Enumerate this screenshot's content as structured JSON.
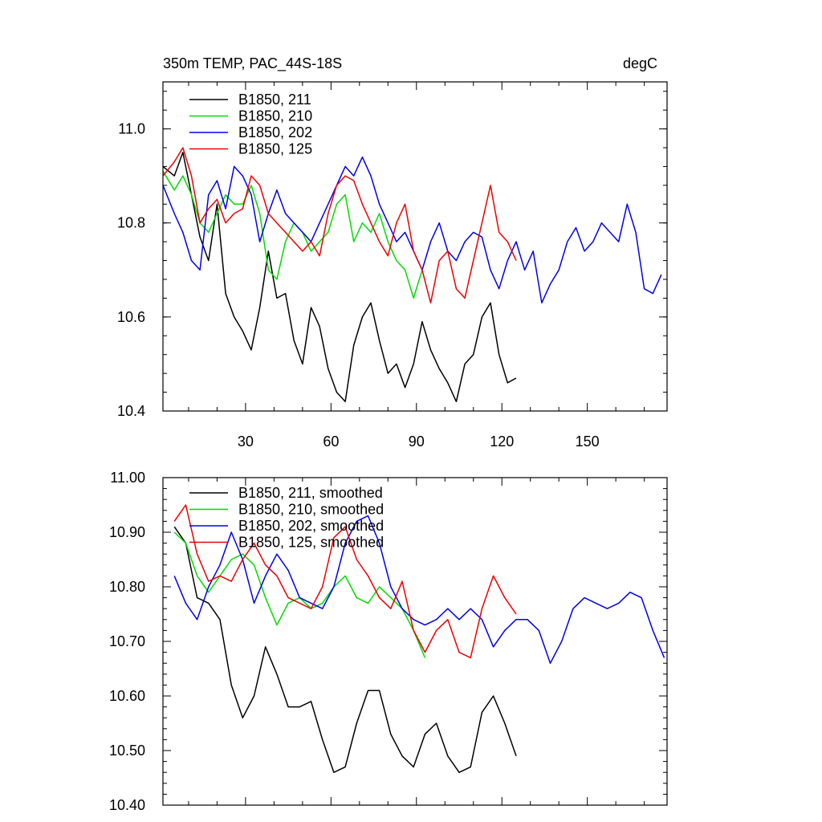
{
  "chart_data": [
    {
      "type": "line",
      "title": "350m TEMP, PAC_44S-18S",
      "units": "degC",
      "xlim": [
        1,
        178
      ],
      "ylim": [
        10.4,
        11.1
      ],
      "x_ticks": [
        30,
        60,
        90,
        120,
        150
      ],
      "y_ticks": [
        10.4,
        10.6,
        10.8,
        11.0
      ],
      "y_tick_labels": [
        "10.4",
        "10.6",
        "10.8",
        "11.0"
      ],
      "legend_position": "top-left",
      "series": [
        {
          "name": "B1850, 211",
          "color": "#000000",
          "x": [
            1,
            5,
            8,
            11,
            14,
            17,
            20,
            23,
            26,
            29,
            32,
            35,
            38,
            41,
            44,
            47,
            50,
            53,
            56,
            59,
            62,
            65,
            68,
            71,
            74,
            77,
            80,
            83,
            86,
            89,
            92,
            95,
            98,
            101,
            104,
            107,
            110,
            113,
            116,
            119,
            122,
            125
          ],
          "y": [
            10.92,
            10.9,
            10.95,
            10.86,
            10.77,
            10.72,
            10.84,
            10.65,
            10.6,
            10.57,
            10.53,
            10.62,
            10.74,
            10.64,
            10.65,
            10.55,
            10.5,
            10.62,
            10.58,
            10.49,
            10.44,
            10.42,
            10.54,
            10.6,
            10.63,
            10.55,
            10.48,
            10.5,
            10.45,
            10.5,
            10.59,
            10.53,
            10.49,
            10.46,
            10.42,
            10.5,
            10.52,
            10.6,
            10.63,
            10.52,
            10.46,
            10.47
          ]
        },
        {
          "name": "B1850, 210",
          "color": "#00dd00",
          "x": [
            1,
            5,
            8,
            11,
            14,
            17,
            20,
            23,
            26,
            29,
            32,
            35,
            38,
            41,
            44,
            47,
            50,
            53,
            56,
            59,
            62,
            65,
            68,
            71,
            74,
            77,
            80,
            83,
            86,
            89,
            92
          ],
          "y": [
            10.91,
            10.87,
            10.9,
            10.86,
            10.8,
            10.78,
            10.82,
            10.86,
            10.84,
            10.84,
            10.88,
            10.82,
            10.7,
            10.68,
            10.76,
            10.8,
            10.78,
            10.74,
            10.76,
            10.78,
            10.84,
            10.86,
            10.76,
            10.8,
            10.78,
            10.82,
            10.76,
            10.72,
            10.7,
            10.64,
            10.7
          ]
        },
        {
          "name": "B1850, 202",
          "color": "#0000ee",
          "x": [
            1,
            5,
            8,
            11,
            14,
            17,
            20,
            23,
            26,
            29,
            32,
            35,
            38,
            41,
            44,
            47,
            50,
            53,
            56,
            59,
            62,
            65,
            68,
            71,
            74,
            77,
            80,
            83,
            86,
            89,
            92,
            95,
            98,
            101,
            104,
            107,
            110,
            113,
            116,
            119,
            122,
            125,
            128,
            131,
            134,
            137,
            140,
            143,
            146,
            149,
            152,
            155,
            158,
            161,
            164,
            167,
            170,
            173,
            176
          ],
          "y": [
            10.88,
            10.82,
            10.78,
            10.72,
            10.7,
            10.86,
            10.89,
            10.83,
            10.92,
            10.9,
            10.86,
            10.76,
            10.82,
            10.87,
            10.82,
            10.8,
            10.78,
            10.76,
            10.8,
            10.84,
            10.88,
            10.92,
            10.9,
            10.94,
            10.9,
            10.84,
            10.8,
            10.76,
            10.78,
            10.74,
            10.7,
            10.76,
            10.8,
            10.74,
            10.72,
            10.76,
            10.78,
            10.77,
            10.7,
            10.66,
            10.72,
            10.76,
            10.7,
            10.74,
            10.63,
            10.67,
            10.7,
            10.76,
            10.79,
            10.74,
            10.76,
            10.8,
            10.78,
            10.76,
            10.84,
            10.78,
            10.66,
            10.65,
            10.69
          ]
        },
        {
          "name": "B1850, 125",
          "color": "#ee0000",
          "x": [
            1,
            5,
            8,
            11,
            14,
            17,
            20,
            23,
            26,
            29,
            32,
            35,
            38,
            41,
            44,
            47,
            50,
            53,
            56,
            59,
            62,
            65,
            68,
            71,
            74,
            77,
            80,
            83,
            86,
            89,
            92,
            95,
            98,
            101,
            104,
            107,
            110,
            113,
            116,
            119,
            122,
            125
          ],
          "y": [
            10.9,
            10.93,
            10.96,
            10.9,
            10.8,
            10.83,
            10.85,
            10.8,
            10.82,
            10.83,
            10.9,
            10.88,
            10.82,
            10.8,
            10.78,
            10.76,
            10.74,
            10.76,
            10.73,
            10.82,
            10.88,
            10.9,
            10.89,
            10.84,
            10.8,
            10.76,
            10.73,
            10.8,
            10.84,
            10.74,
            10.7,
            10.63,
            10.72,
            10.74,
            10.66,
            10.64,
            10.72,
            10.8,
            10.88,
            10.78,
            10.76,
            10.72
          ]
        }
      ]
    },
    {
      "type": "line",
      "xlim": [
        1,
        178
      ],
      "ylim": [
        10.4,
        11.0
      ],
      "x_ticks": [
        30,
        60,
        90,
        120,
        150
      ],
      "y_ticks": [
        10.4,
        10.5,
        10.6,
        10.7,
        10.8,
        10.9,
        11.0
      ],
      "y_tick_labels": [
        "10.40",
        "10.50",
        "10.60",
        "10.70",
        "10.80",
        "10.90",
        "11.00"
      ],
      "legend_position": "top-left",
      "series": [
        {
          "name": "B1850, 211, smoothed",
          "color": "#000000",
          "x": [
            5,
            9,
            13,
            17,
            21,
            25,
            29,
            33,
            37,
            41,
            45,
            49,
            53,
            57,
            61,
            65,
            69,
            73,
            77,
            81,
            85,
            89,
            93,
            97,
            101,
            105,
            109,
            113,
            117,
            121,
            125
          ],
          "y": [
            10.91,
            10.88,
            10.78,
            10.77,
            10.74,
            10.62,
            10.56,
            10.6,
            10.69,
            10.64,
            10.58,
            10.58,
            10.59,
            10.52,
            10.46,
            10.47,
            10.55,
            10.61,
            10.61,
            10.53,
            10.49,
            10.47,
            10.53,
            10.55,
            10.49,
            10.46,
            10.47,
            10.57,
            10.6,
            10.55,
            10.49
          ]
        },
        {
          "name": "B1850, 210, smoothed",
          "color": "#00dd00",
          "x": [
            5,
            9,
            13,
            17,
            21,
            25,
            29,
            33,
            37,
            41,
            45,
            49,
            53,
            57,
            61,
            65,
            69,
            73,
            77,
            81,
            85,
            89,
            93
          ],
          "y": [
            10.9,
            10.88,
            10.82,
            10.79,
            10.82,
            10.85,
            10.86,
            10.84,
            10.78,
            10.73,
            10.77,
            10.78,
            10.76,
            10.77,
            10.8,
            10.82,
            10.78,
            10.77,
            10.8,
            10.78,
            10.76,
            10.72,
            10.67
          ]
        },
        {
          "name": "B1850, 202, smoothed",
          "color": "#0000ee",
          "x": [
            5,
            9,
            13,
            17,
            21,
            25,
            29,
            33,
            37,
            41,
            45,
            49,
            53,
            57,
            61,
            65,
            69,
            73,
            77,
            81,
            85,
            89,
            93,
            97,
            101,
            105,
            109,
            113,
            117,
            121,
            125,
            129,
            133,
            137,
            141,
            145,
            149,
            153,
            157,
            161,
            165,
            169,
            173,
            177
          ],
          "y": [
            10.82,
            10.77,
            10.74,
            10.8,
            10.84,
            10.9,
            10.85,
            10.77,
            10.82,
            10.86,
            10.83,
            10.78,
            10.77,
            10.76,
            10.8,
            10.88,
            10.92,
            10.93,
            10.88,
            10.8,
            10.76,
            10.74,
            10.73,
            10.74,
            10.76,
            10.74,
            10.76,
            10.74,
            10.69,
            10.72,
            10.74,
            10.74,
            10.72,
            10.66,
            10.7,
            10.76,
            10.78,
            10.77,
            10.76,
            10.77,
            10.79,
            10.78,
            10.72,
            10.67
          ]
        },
        {
          "name": "B1850, 125, smoothed",
          "color": "#ee0000",
          "x": [
            5,
            9,
            13,
            17,
            21,
            25,
            29,
            33,
            37,
            41,
            45,
            49,
            53,
            57,
            61,
            65,
            69,
            73,
            77,
            81,
            85,
            89,
            93,
            97,
            101,
            105,
            109,
            113,
            117,
            121,
            125
          ],
          "y": [
            10.92,
            10.95,
            10.86,
            10.81,
            10.82,
            10.81,
            10.85,
            10.88,
            10.84,
            10.82,
            10.78,
            10.77,
            10.76,
            10.8,
            10.89,
            10.91,
            10.85,
            10.82,
            10.78,
            10.76,
            10.81,
            10.72,
            10.68,
            10.72,
            10.74,
            10.68,
            10.67,
            10.76,
            10.82,
            10.78,
            10.75
          ]
        }
      ]
    }
  ]
}
